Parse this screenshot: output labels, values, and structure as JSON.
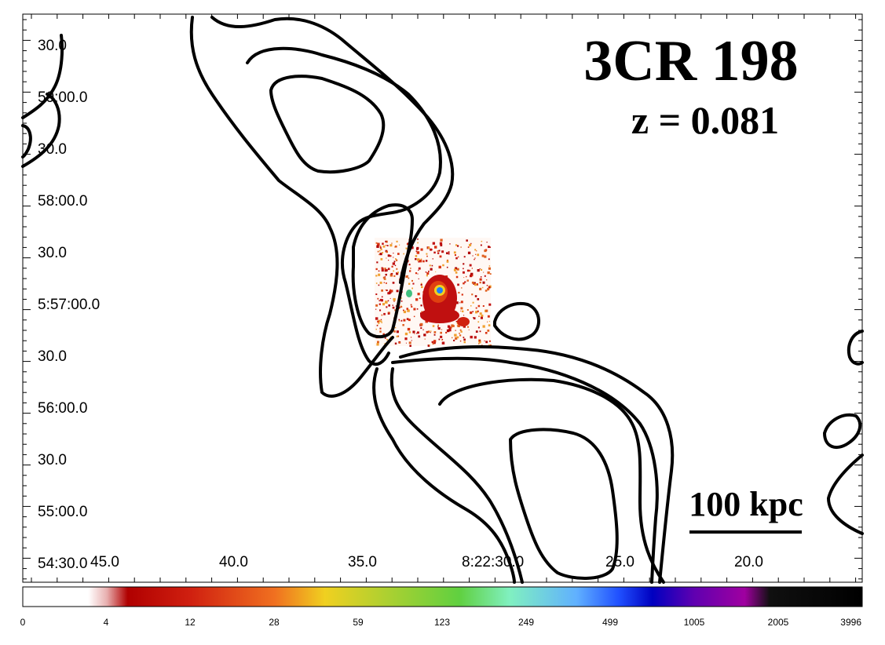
{
  "object": {
    "name": "3CR 198",
    "redshift": "z = 0.081"
  },
  "scale_bar": {
    "label": "100 kpc"
  },
  "axes": {
    "dec_ticks": [
      "30.0",
      "59:00.0",
      "30.0",
      "58:00.0",
      "30.0",
      "5:57:00.0",
      "30.0",
      "56:00.0",
      "30.0",
      "55:00.0",
      "54:30.0"
    ],
    "ra_ticks": [
      "45.0",
      "40.0",
      "35.0",
      "8:22:30.0",
      "25.0",
      "20.0"
    ]
  },
  "colorbar": {
    "labels": [
      "0",
      "4",
      "12",
      "28",
      "59",
      "123",
      "249",
      "499",
      "1005",
      "2005",
      "3996"
    ],
    "colors": [
      "#ffffff",
      "#e8b0b0",
      "#b00000",
      "#e05010",
      "#f0d020",
      "#60d040",
      "#80f0c0",
      "#2050ff",
      "#7000b0",
      "#202020",
      "#000000"
    ]
  }
}
